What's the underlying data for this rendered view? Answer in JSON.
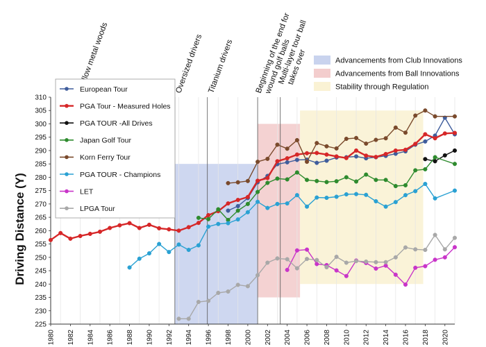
{
  "chart_data": {
    "type": "line",
    "title": "",
    "xlabel": "",
    "ylabel": "Driving Distance (Y)",
    "xlim": [
      1980,
      2021
    ],
    "ylim": [
      225,
      310
    ],
    "yticks": [
      225,
      230,
      235,
      240,
      245,
      250,
      255,
      260,
      265,
      270,
      275,
      280,
      285,
      290,
      295,
      300,
      305,
      310
    ],
    "xticks": [
      1980,
      1982,
      1984,
      1986,
      1988,
      1990,
      1992,
      1994,
      1996,
      1998,
      2000,
      2002,
      2004,
      2006,
      2008,
      2010,
      2012,
      2014,
      2016,
      2018,
      2020
    ],
    "regions": [
      {
        "name": "Advancements from Club Innovations",
        "x0": 1992.6,
        "x1": 2001,
        "y0": 225,
        "y1": 285,
        "color": "#c9d3ee"
      },
      {
        "name": "Advancements from Ball Innovations",
        "x0": 2001,
        "x1": 2005.3,
        "y0": 235,
        "y1": 300,
        "color": "#f3cdcd"
      },
      {
        "name": "Stability through Regulation",
        "x0": 2005.3,
        "x1": 2017.8,
        "y0": 240,
        "y1": 305,
        "color": "#faf2d4"
      }
    ],
    "annotations": [
      {
        "text": "Hollow metal woods",
        "x": 1983
      },
      {
        "text": "Oversized drivers",
        "x": 1992.6
      },
      {
        "text": "Titanium drivers",
        "x": 1995.9
      },
      {
        "text": "Beginning of the end for wound golf balls",
        "x": 2001
      },
      {
        "text": "Multi-layer tour ball takes over",
        "x": 2003.3
      }
    ],
    "series": [
      {
        "name": "European Tour",
        "color": "#3f5d9c",
        "x": [
          1998,
          1999,
          2000,
          2001,
          2002,
          2003,
          2004,
          2005,
          2006,
          2007,
          2008,
          2009,
          2010,
          2011,
          2012,
          2013,
          2014,
          2015,
          2016,
          2017,
          2018,
          2019,
          2020,
          2021
        ],
        "y": [
          267.5,
          269.2,
          272.2,
          278.1,
          280.5,
          284.9,
          285.6,
          286.5,
          286.6,
          285.4,
          286.2,
          287.4,
          287.5,
          287.8,
          287.1,
          287.5,
          288.0,
          288.8,
          289.7,
          292.2,
          293.4,
          295.6,
          302.3,
          296.1
        ]
      },
      {
        "name": "PGA Tour - Measured Holes",
        "color": "#d62728",
        "x": [
          1980,
          1981,
          1982,
          1983,
          1984,
          1985,
          1986,
          1987,
          1988,
          1989,
          1990,
          1991,
          1992,
          1993,
          1994,
          1995,
          1996,
          1997,
          1998,
          1999,
          2000,
          2001,
          2002,
          2003,
          2004,
          2005,
          2006,
          2007,
          2008,
          2009,
          2010,
          2011,
          2012,
          2013,
          2014,
          2015,
          2016,
          2017,
          2018,
          2019,
          2020,
          2021
        ],
        "y": [
          256.5,
          259.1,
          257.0,
          258.0,
          258.8,
          259.6,
          261.0,
          262.0,
          262.8,
          261.0,
          262.2,
          260.9,
          260.5,
          260.0,
          261.3,
          262.9,
          265.8,
          267.3,
          270.2,
          271.5,
          272.6,
          278.7,
          279.7,
          286.0,
          287.1,
          288.5,
          289.0,
          289.1,
          288.5,
          287.8,
          287.2,
          290.0,
          288.1,
          287.6,
          288.7,
          290.0,
          290.3,
          292.5,
          296.1,
          294.6,
          296.4,
          296.6
        ]
      },
      {
        "name": "PGA TOUR -All Drives",
        "color": "#111111",
        "x": [
          2018,
          2019,
          2020,
          2021
        ],
        "y": [
          286.8,
          286.0,
          288.2,
          290.0
        ]
      },
      {
        "name": "Japan Golf Tour",
        "color": "#2e8b2e",
        "x": [
          1995,
          1996,
          1997,
          1998,
          1999,
          2000,
          2001,
          2002,
          2003,
          2004,
          2005,
          2006,
          2007,
          2008,
          2009,
          2010,
          2011,
          2012,
          2013,
          2014,
          2015,
          2016,
          2017,
          2018,
          2019,
          2021
        ],
        "y": [
          264.8,
          264.3,
          268.0,
          264.0,
          267.5,
          270.0,
          274.5,
          277.9,
          279.5,
          279.2,
          281.8,
          279.0,
          278.6,
          278.2,
          278.5,
          280.0,
          278.4,
          281.0,
          279.0,
          279.0,
          276.7,
          277.0,
          282.6,
          283.0,
          287.5,
          285.0
        ]
      },
      {
        "name": "Korn Ferry Tour",
        "color": "#7a4a2c",
        "x": [
          1998,
          1999,
          2000,
          2001,
          2002,
          2003,
          2004,
          2005,
          2006,
          2007,
          2008,
          2009,
          2010,
          2011,
          2012,
          2013,
          2014,
          2015,
          2016,
          2017,
          2018,
          2019,
          2021
        ],
        "y": [
          277.8,
          278.1,
          278.6,
          285.8,
          286.9,
          292.2,
          290.7,
          293.9,
          285.8,
          292.8,
          291.6,
          290.8,
          294.4,
          294.7,
          292.6,
          294.0,
          294.6,
          298.6,
          296.7,
          303.1,
          305.0,
          302.8,
          302.8
        ]
      },
      {
        "name": "PGA TOUR - Champions",
        "color": "#2aa1d3",
        "x": [
          1988,
          1989,
          1990,
          1991,
          1992,
          1993,
          1994,
          1995,
          1996,
          1997,
          1998,
          1999,
          2000,
          2001,
          2002,
          2003,
          2004,
          2005,
          2006,
          2007,
          2008,
          2009,
          2010,
          2011,
          2012,
          2013,
          2014,
          2015,
          2016,
          2017,
          2018,
          2019,
          2021
        ],
        "y": [
          246.2,
          249.5,
          251.5,
          255.0,
          252.0,
          254.8,
          252.8,
          254.5,
          261.5,
          262.5,
          262.8,
          264.2,
          266.9,
          270.8,
          268.5,
          270.0,
          270.2,
          273.3,
          269.0,
          272.4,
          272.3,
          272.7,
          273.6,
          273.7,
          273.4,
          271.0,
          269.0,
          270.7,
          273.3,
          274.8,
          277.5,
          272.1,
          275.0
        ]
      },
      {
        "name": "LET",
        "color": "#c935c9",
        "x": [
          2004,
          2005,
          2006,
          2007,
          2008,
          2009,
          2010,
          2011,
          2012,
          2013,
          2014,
          2015,
          2016,
          2017,
          2018,
          2019,
          2020,
          2021
        ],
        "y": [
          245.3,
          252.6,
          252.9,
          247.5,
          247.1,
          245.1,
          243.0,
          248.8,
          247.9,
          245.8,
          246.9,
          243.5,
          239.8,
          246.1,
          246.7,
          249.1,
          250.0,
          253.8
        ]
      },
      {
        "name": "LPGA Tour",
        "color": "#a8a8a8",
        "x": [
          1993,
          1994,
          1995,
          1996,
          1997,
          1998,
          1999,
          2000,
          2001,
          2002,
          2003,
          2004,
          2005,
          2006,
          2007,
          2008,
          2009,
          2010,
          2011,
          2012,
          2013,
          2014,
          2015,
          2016,
          2017,
          2018,
          2019,
          2020,
          2021
        ],
        "y": [
          227.0,
          227.0,
          233.3,
          233.7,
          236.7,
          237.2,
          239.7,
          239.2,
          243.3,
          248.0,
          249.6,
          249.3,
          245.9,
          249.4,
          249.0,
          246.3,
          250.2,
          248.0,
          248.6,
          248.4,
          248.2,
          248.2,
          250.0,
          253.7,
          253.0,
          252.8,
          258.4,
          253.0,
          257.3
        ]
      }
    ]
  }
}
